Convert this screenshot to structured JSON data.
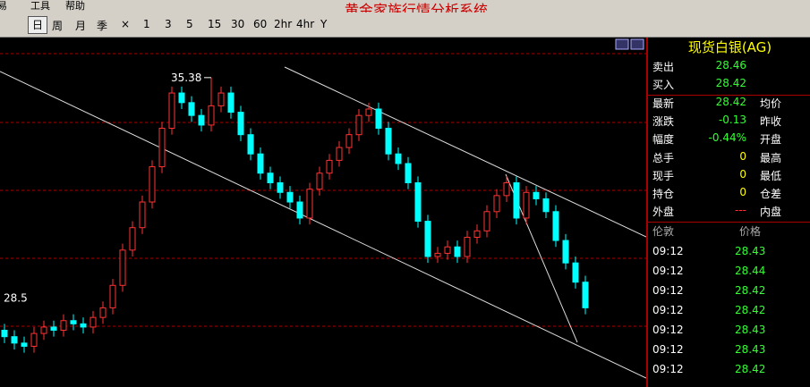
{
  "menu": [
    "交易",
    "工具",
    "帮助"
  ],
  "app_title": "黄金家族行情分析系统",
  "toolbar": [
    "日",
    "周",
    "月",
    "季",
    "×",
    "1",
    "3",
    "5",
    "15",
    "30",
    "60",
    "2hr",
    "4hr",
    "Y"
  ],
  "chart": {
    "type": "candlestick",
    "ylim": [
      25.73,
      36.63
    ],
    "yticks": [
      28.5
    ],
    "annotation": {
      "text": "35.38",
      "value": 35.38
    },
    "open": [
      27.5,
      27.3,
      27.1,
      27.0,
      27.4,
      27.6,
      27.5,
      27.8,
      27.7,
      27.6,
      27.9,
      28.2,
      28.9,
      30.0,
      30.7,
      31.5,
      32.6,
      33.8,
      34.9,
      34.6,
      34.2,
      33.9,
      34.5,
      34.9,
      34.3,
      33.6,
      33.0,
      32.4,
      32.1,
      31.8,
      31.5,
      31.0,
      31.9,
      32.4,
      32.8,
      33.2,
      33.6,
      34.2,
      34.4,
      33.8,
      33.0,
      32.7,
      32.1,
      30.9,
      29.8,
      29.9,
      30.1,
      29.8,
      30.4,
      30.6,
      31.2,
      31.7,
      32.1,
      31.0,
      31.8,
      31.6,
      31.2,
      30.3,
      29.6,
      29.0
    ],
    "high": [
      27.7,
      27.5,
      27.3,
      27.6,
      27.8,
      27.8,
      28.0,
      28.0,
      27.9,
      28.1,
      28.4,
      29.1,
      30.2,
      30.9,
      31.7,
      32.8,
      34.0,
      35.1,
      35.1,
      34.8,
      34.4,
      35.38,
      35.1,
      35.1,
      34.5,
      33.8,
      33.2,
      32.6,
      32.3,
      32.0,
      31.7,
      32.1,
      32.6,
      33.0,
      33.4,
      33.8,
      34.4,
      34.6,
      34.6,
      34.0,
      33.2,
      32.9,
      32.3,
      31.1,
      30.1,
      30.3,
      30.3,
      30.6,
      30.8,
      31.4,
      31.9,
      32.3,
      32.3,
      32.0,
      32.0,
      31.8,
      31.4,
      30.5,
      29.8,
      29.2
    ],
    "low": [
      27.1,
      26.9,
      26.8,
      26.8,
      27.2,
      27.3,
      27.3,
      27.5,
      27.4,
      27.4,
      27.7,
      28.0,
      28.7,
      29.8,
      30.5,
      31.3,
      32.4,
      33.6,
      34.4,
      34.0,
      33.7,
      33.7,
      34.3,
      34.1,
      33.4,
      32.8,
      32.2,
      31.9,
      31.6,
      31.3,
      30.8,
      30.8,
      31.7,
      32.2,
      32.6,
      33.0,
      33.4,
      34.0,
      33.6,
      32.8,
      32.5,
      31.9,
      30.7,
      29.6,
      29.6,
      29.7,
      29.6,
      29.6,
      30.2,
      30.4,
      31.0,
      31.5,
      30.8,
      30.8,
      31.4,
      31.0,
      30.1,
      29.4,
      28.8,
      28.0
    ],
    "close": [
      27.3,
      27.1,
      27.0,
      27.4,
      27.6,
      27.5,
      27.8,
      27.7,
      27.6,
      27.9,
      28.2,
      28.9,
      30.0,
      30.7,
      31.5,
      32.6,
      33.8,
      34.9,
      34.6,
      34.2,
      33.9,
      34.5,
      34.9,
      34.3,
      33.6,
      33.0,
      32.4,
      32.1,
      31.8,
      31.5,
      31.0,
      31.9,
      32.4,
      32.8,
      33.2,
      33.6,
      34.2,
      34.4,
      33.8,
      33.0,
      32.7,
      32.1,
      30.9,
      29.8,
      29.9,
      30.1,
      29.8,
      30.4,
      30.6,
      31.2,
      31.7,
      32.1,
      31.0,
      31.8,
      31.6,
      31.2,
      30.3,
      29.6,
      29.0,
      28.2
    ]
  },
  "quote": {
    "name": "现货白银(AG)",
    "rows": [
      [
        "卖出",
        "28.46",
        ""
      ],
      [
        "买入",
        "28.42",
        ""
      ],
      [
        "最新",
        "28.42",
        "均价"
      ],
      [
        "涨跌",
        "-0.13",
        "昨收"
      ],
      [
        "幅度",
        "-0.44%",
        "开盘"
      ],
      [
        "总手",
        "0",
        "最高"
      ],
      [
        "现手",
        "0",
        "最低"
      ],
      [
        "持仓",
        "0",
        "仓差"
      ],
      [
        "外盘",
        "---",
        "内盘"
      ]
    ],
    "trades_header": [
      "伦敦",
      "价格"
    ],
    "trades": [
      [
        "09:12",
        "28.43"
      ],
      [
        "09:12",
        "28.44"
      ],
      [
        "09:12",
        "28.42"
      ],
      [
        "09:12",
        "28.42"
      ],
      [
        "09:12",
        "28.43"
      ],
      [
        "09:12",
        "28.43"
      ],
      [
        "09:12",
        "28.42"
      ]
    ]
  }
}
